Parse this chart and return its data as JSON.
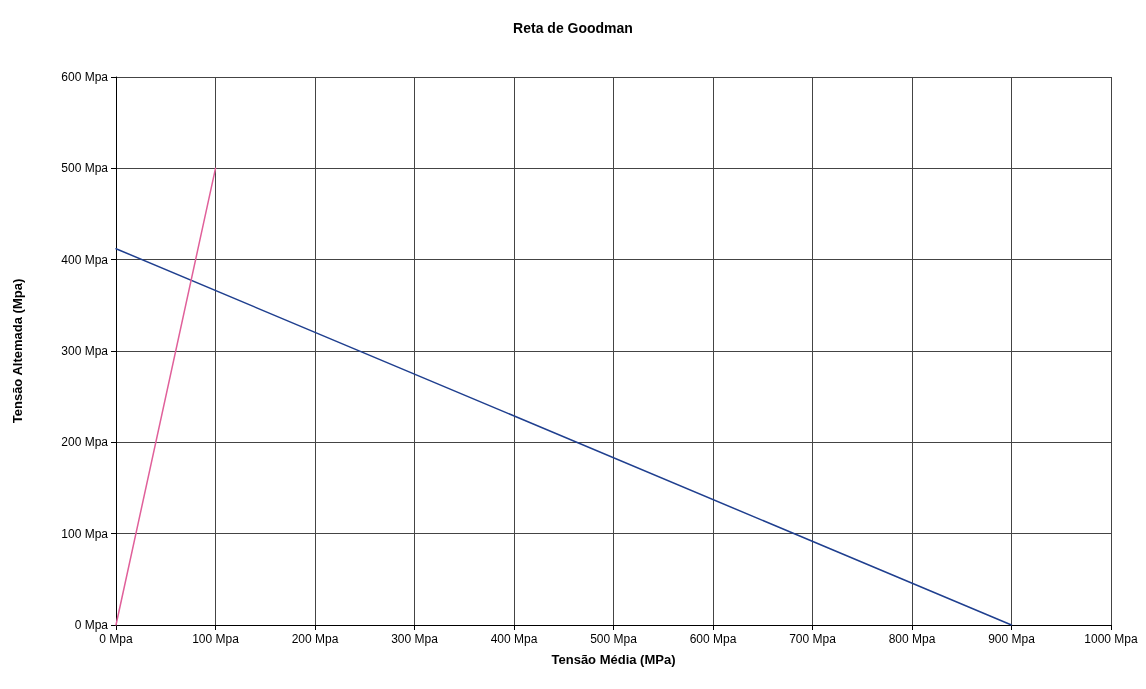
{
  "chart_data": {
    "type": "line",
    "title": "Reta de Goodman",
    "xlabel": "Tensão Média (MPa)",
    "ylabel": "Tensão Altemada (Mpa)",
    "series": [
      {
        "color": "#1f3f8f",
        "x": [
          0,
          900
        ],
        "values": [
          412,
          0
        ]
      },
      {
        "color": "#e0609a",
        "x": [
          0,
          100
        ],
        "values": [
          0,
          500
        ]
      }
    ],
    "xlim": [
      0,
      1000
    ],
    "xticks": [
      {
        "value": 0,
        "label": "0 Mpa"
      },
      {
        "value": 100,
        "label": "100 Mpa"
      },
      {
        "value": 200,
        "label": "200 Mpa"
      },
      {
        "value": 300,
        "label": "300 Mpa"
      },
      {
        "value": 400,
        "label": "400 Mpa"
      },
      {
        "value": 500,
        "label": "500 Mpa"
      },
      {
        "value": 600,
        "label": "600 Mpa"
      },
      {
        "value": 700,
        "label": "700 Mpa"
      },
      {
        "value": 800,
        "label": "800 Mpa"
      },
      {
        "value": 900,
        "label": "900 Mpa"
      },
      {
        "value": 1000,
        "label": "1000 Mpa"
      }
    ],
    "ylim": [
      0,
      600
    ],
    "yticks": [
      {
        "value": 0,
        "label": "0 Mpa"
      },
      {
        "value": 100,
        "label": "100 Mpa"
      },
      {
        "value": 200,
        "label": "200 Mpa"
      },
      {
        "value": 300,
        "label": "300 Mpa"
      },
      {
        "value": 400,
        "label": "400 Mpa"
      },
      {
        "value": 500,
        "label": "500 Mpa"
      },
      {
        "value": 600,
        "label": "600 Mpa"
      }
    ],
    "grid": true,
    "marker": "none",
    "line_style": "solid"
  }
}
